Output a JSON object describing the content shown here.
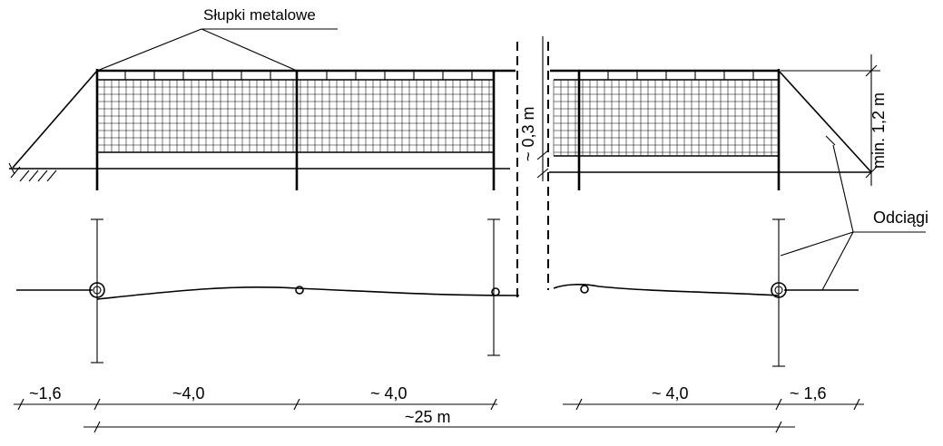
{
  "labels": {
    "posts": "Słupki metalowe",
    "guys": "Odciągi",
    "height_min": "min. 1,2 m",
    "gap": "~ 0,3 m"
  },
  "dimensions": {
    "left_overhang": "~1,6",
    "span_1": "~4,0",
    "span_2": "~ 4,0",
    "span_3": "~ 4,0",
    "right_overhang": "~ 1,6",
    "total_length": "~25 m"
  }
}
